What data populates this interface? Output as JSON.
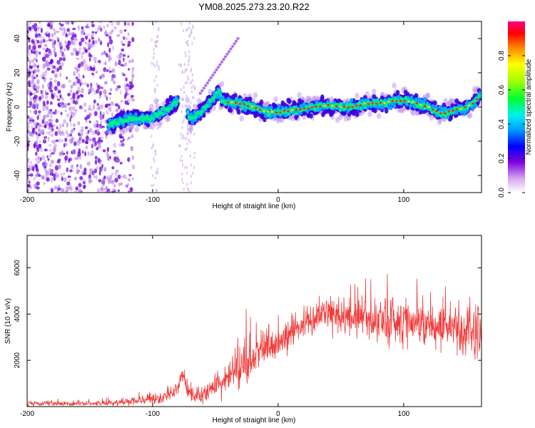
{
  "title": "YM08.2025.273.23.20.R22",
  "chart_data": [
    {
      "type": "heatmap",
      "name": "spectrogram",
      "xlabel": "Height of straight line (km)",
      "ylabel": "Frequency (Hz)",
      "xlim": [
        -200,
        162
      ],
      "ylim": [
        -50,
        50
      ],
      "xticks": [
        -200,
        -100,
        0,
        100
      ],
      "yticks": [
        -40,
        -20,
        0,
        20,
        40
      ],
      "ridge": {
        "x": [
          -135,
          -120,
          -110,
          -100,
          -90,
          -82,
          -76,
          -70,
          -62,
          -55,
          -50,
          -47,
          -44,
          -40,
          -30,
          -20,
          -10,
          0,
          10,
          20,
          30,
          40,
          50,
          60,
          70,
          80,
          90,
          100,
          110,
          120,
          130,
          140,
          150,
          155,
          160,
          162
        ],
        "y": [
          -10,
          -7,
          -7,
          -6,
          -2,
          2,
          4,
          -7,
          -3,
          2,
          6,
          9,
          3,
          3,
          2,
          0,
          -3,
          -3,
          -2,
          -1,
          0,
          1,
          0,
          0,
          2,
          2,
          3,
          4,
          2,
          0,
          -4,
          -2,
          0,
          2,
          6,
          7
        ]
      },
      "colorbar": {
        "label": "Normalized spectral amplitude",
        "range": [
          0,
          1
        ],
        "ticks": [
          "0.0",
          "0.2",
          "0.4",
          "0.6",
          "0.8"
        ]
      }
    },
    {
      "type": "line",
      "name": "snr",
      "xlabel": "Height of straight line (km)",
      "ylabel": "SNR (10 * v/v)",
      "xlim": [
        -200,
        162
      ],
      "ylim": [
        0,
        7400
      ],
      "xticks": [
        -200,
        -100,
        0,
        100
      ],
      "yticks": [
        2000,
        4000,
        6000
      ],
      "color": "#f03a3a",
      "envelope": {
        "x": [
          -200,
          -140,
          -120,
          -100,
          -90,
          -80,
          -76,
          -72,
          -62,
          -52,
          -42,
          -32,
          -22,
          -12,
          0,
          10,
          20,
          30,
          40,
          60,
          80,
          100,
          120,
          140,
          150,
          162
        ],
        "mean": [
          120,
          140,
          220,
          320,
          420,
          700,
          1500,
          650,
          400,
          850,
          1100,
          1700,
          1950,
          2450,
          2700,
          3200,
          3600,
          3900,
          4000,
          3850,
          3800,
          3750,
          3550,
          3450,
          3300,
          3200
        ],
        "spread": [
          100,
          100,
          150,
          200,
          250,
          300,
          350,
          300,
          300,
          550,
          650,
          800,
          900,
          800,
          600,
          550,
          550,
          600,
          650,
          800,
          950,
          1100,
          900,
          900,
          1150,
          1500
        ]
      }
    }
  ]
}
